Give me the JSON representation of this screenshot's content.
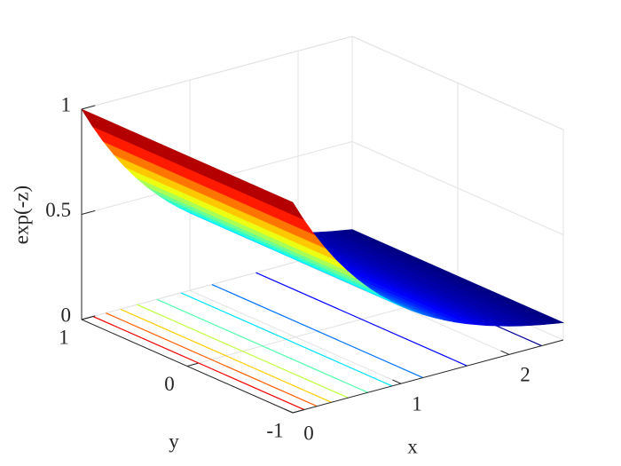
{
  "chart_data": {
    "type": "surface-contour",
    "xlabel": "x",
    "ylabel": "y",
    "zlabel": "exp(-z)",
    "x": [
      0,
      0.1,
      0.2,
      0.3,
      0.4,
      0.5,
      0.6,
      0.7,
      0.8,
      0.9,
      1.0,
      1.1,
      1.2,
      1.3,
      1.4,
      1.5,
      1.6,
      1.7,
      1.8,
      1.9,
      2.0,
      2.1,
      2.2,
      2.3,
      2.4,
      2.5
    ],
    "y": [
      -1,
      1
    ],
    "z": [
      [
        1,
        0.905,
        0.819,
        0.741,
        0.67,
        0.607,
        0.549,
        0.497,
        0.449,
        0.407,
        0.368,
        0.333,
        0.301,
        0.273,
        0.247,
        0.223,
        0.202,
        0.183,
        0.165,
        0.15,
        0.135,
        0.122,
        0.111,
        0.1,
        0.091,
        0.082
      ],
      [
        1,
        0.905,
        0.819,
        0.741,
        0.67,
        0.607,
        0.549,
        0.497,
        0.449,
        0.407,
        0.368,
        0.333,
        0.301,
        0.273,
        0.247,
        0.223,
        0.202,
        0.183,
        0.165,
        0.15,
        0.135,
        0.122,
        0.111,
        0.1,
        0.091,
        0.082
      ]
    ],
    "contour_levels": [
      0.1,
      0.2,
      0.3,
      0.4,
      0.5,
      0.6,
      0.7,
      0.8,
      0.9
    ],
    "colormap": "jet",
    "xlim": [
      0,
      2.5
    ],
    "xticks": [
      0,
      1,
      2
    ],
    "ylim": [
      -1,
      1
    ],
    "yticks": [
      -1,
      0,
      1
    ],
    "zlim": [
      0,
      1
    ],
    "zticks": [
      0,
      0.5,
      1
    ],
    "grid": true
  }
}
